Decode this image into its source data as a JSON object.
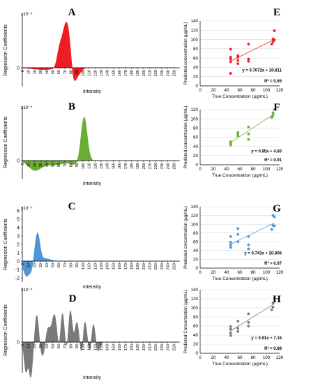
{
  "colors": {
    "A": "#ee1c24",
    "B": "#6aad35",
    "C": "#4f95d6",
    "D": "#7a7a7a",
    "axis": "#000000",
    "grid": "#d9d9d9",
    "text": "#000000"
  },
  "chart_data": [
    {
      "panel": "A",
      "type": "area",
      "ylabel": "Regression Coefficients",
      "xlabel": "Intensity",
      "scale_label": "x10⁻⁴",
      "yticks": [
        0
      ],
      "xticks": [
        0,
        10,
        20,
        30,
        40,
        50,
        60,
        70,
        80,
        90,
        100,
        110,
        120,
        130,
        140,
        150,
        160,
        170,
        180,
        190,
        200,
        210,
        220,
        230,
        240,
        250
      ],
      "peaks": [
        {
          "center": 73,
          "width": 7,
          "amp": 6.0
        },
        {
          "center": 61,
          "width": 4,
          "amp": 1.6
        },
        {
          "center": 84,
          "width": 4,
          "amp": -2.6
        },
        {
          "center": 92,
          "width": 5,
          "amp": -0.9
        },
        {
          "center": 35,
          "width": 18,
          "amp": -0.25
        }
      ]
    },
    {
      "panel": "B",
      "type": "area",
      "ylabel": "Regression Coefficients",
      "xlabel": "Intensity",
      "scale_label": "x10⁻⁴",
      "yticks": [
        0
      ],
      "xticks": [
        0,
        10,
        20,
        30,
        40,
        50,
        60,
        70,
        80,
        90,
        100,
        110,
        120,
        130,
        140,
        150,
        160,
        170,
        180,
        190,
        200,
        210,
        220,
        230,
        240,
        250
      ],
      "peaks": [
        {
          "center": 102,
          "width": 5,
          "amp": 5.7
        },
        {
          "center": 20,
          "width": 10,
          "amp": -1.1
        },
        {
          "center": 50,
          "width": 20,
          "amp": -0.6
        },
        {
          "center": 86,
          "width": 6,
          "amp": -0.4
        }
      ]
    },
    {
      "panel": "C",
      "type": "area",
      "ylabel": "Regression Coefficients",
      "xlabel": "Intensity",
      "scale_label": "x10⁻⁴",
      "yticks": [
        -2,
        -1,
        0,
        1,
        2,
        3,
        4,
        5,
        6
      ],
      "xticks": [
        0,
        10,
        20,
        30,
        40,
        50,
        60,
        70,
        80,
        90,
        100,
        110,
        120,
        130,
        140,
        150,
        160,
        170,
        180,
        190,
        200,
        210,
        220,
        230,
        240,
        250
      ],
      "peaks": [
        {
          "center": 25,
          "width": 4,
          "amp": 3.3
        },
        {
          "center": 7,
          "width": 5,
          "amp": -1.8
        },
        {
          "center": 15,
          "width": 3,
          "amp": -0.8
        },
        {
          "center": 38,
          "width": 8,
          "amp": 0.3
        }
      ]
    },
    {
      "panel": "D",
      "type": "area",
      "ylabel": "Regression Coefficients",
      "xlabel": "Intensity",
      "scale_label": "x10⁻⁴",
      "yticks": [
        0
      ],
      "xticks": [
        0,
        10,
        20,
        30,
        40,
        50,
        60,
        70,
        80,
        90,
        100,
        110,
        120,
        130,
        140,
        150,
        160,
        170,
        180,
        190,
        200,
        210,
        220,
        230,
        240,
        250
      ],
      "peaks": [
        {
          "center": 6,
          "width": 3,
          "amp": -3.8
        },
        {
          "center": 14,
          "width": 3,
          "amp": -4.5
        },
        {
          "center": 24,
          "width": 3,
          "amp": 3.6
        },
        {
          "center": 34,
          "width": 4,
          "amp": -2.0
        },
        {
          "center": 42,
          "width": 4,
          "amp": 2.0
        },
        {
          "center": 53,
          "width": 4,
          "amp": 3.6
        },
        {
          "center": 61,
          "width": 3,
          "amp": -1.5
        },
        {
          "center": 66,
          "width": 3,
          "amp": 4.1
        },
        {
          "center": 74,
          "width": 3,
          "amp": -1.3
        },
        {
          "center": 79,
          "width": 3,
          "amp": 4.4
        },
        {
          "center": 90,
          "width": 3,
          "amp": 2.6
        },
        {
          "center": 98,
          "width": 2.5,
          "amp": -1.8
        },
        {
          "center": 103,
          "width": 3,
          "amp": 2.8
        },
        {
          "center": 112,
          "width": 2.5,
          "amp": -1.5
        },
        {
          "center": 117,
          "width": 3,
          "amp": 2.5
        },
        {
          "center": 125,
          "width": 3,
          "amp": -1.2
        }
      ]
    },
    {
      "panel": "E",
      "type": "scatter",
      "xlabel": "True Concentration (µg/mL)",
      "ylabel": "Predicted concentration (µg/mL)",
      "xlim": [
        0,
        120
      ],
      "ylim": [
        0,
        140
      ],
      "xticks": [
        0,
        20,
        40,
        60,
        80,
        100,
        120
      ],
      "yticks": [
        0,
        20,
        40,
        60,
        80,
        100,
        120,
        140
      ],
      "equation": "y = 0.7072x + 20.811",
      "r2": "R² = 0.65",
      "trend": {
        "slope": 0.7072,
        "intercept": 20.811,
        "x_range": [
          46,
          112
        ]
      },
      "x": [
        46,
        46,
        46,
        46,
        46,
        57,
        57,
        57,
        57,
        73,
        73,
        73,
        108,
        110,
        110,
        112,
        112
      ],
      "y": [
        27,
        52,
        58,
        62,
        79,
        48,
        55,
        62,
        65,
        53,
        58,
        90,
        90,
        95,
        101,
        99,
        119
      ]
    },
    {
      "panel": "F",
      "type": "scatter",
      "xlabel": "True Concentration (µg/mL)",
      "ylabel": "Predicted concentration (µg/mL)",
      "xlim": [
        0,
        120
      ],
      "ylim": [
        0,
        120
      ],
      "xticks": [
        0,
        20,
        40,
        60,
        80,
        100,
        120
      ],
      "yticks": [
        0,
        20,
        40,
        60,
        80,
        100,
        120
      ],
      "equation": "y = 0.95x + 4.60",
      "r2": "R² = 0.91",
      "trend": {
        "slope": 0.95,
        "intercept": 4.6,
        "x_range": [
          46,
          112
        ]
      },
      "x": [
        46,
        46,
        46,
        57,
        57,
        57,
        73,
        73,
        73,
        108,
        110,
        110,
        112
      ],
      "y": [
        43,
        46,
        50,
        63,
        68,
        70,
        55,
        67,
        82,
        103,
        107,
        113,
        120
      ]
    },
    {
      "panel": "G",
      "type": "scatter",
      "xlabel": "True Concentration (µg/mL)",
      "ylabel": "Predicted concentration (µg/mL)",
      "xlim": [
        0,
        120
      ],
      "ylim": [
        0,
        140
      ],
      "xticks": [
        0,
        20,
        40,
        60,
        80,
        100,
        120
      ],
      "yticks": [
        0,
        20,
        40,
        60,
        80,
        100,
        120,
        140
      ],
      "equation": "y = 0.743x + 20.006",
      "r2": "R² = 0.67",
      "trend": {
        "slope": 0.743,
        "intercept": 20.006,
        "x_range": [
          46,
          112
        ]
      },
      "x": [
        46,
        46,
        46,
        46,
        57,
        57,
        57,
        73,
        73,
        73,
        108,
        110,
        110,
        112,
        112
      ],
      "y": [
        47,
        53,
        59,
        72,
        60,
        77,
        90,
        44,
        53,
        72,
        88,
        97,
        120,
        96,
        117
      ]
    },
    {
      "panel": "H",
      "type": "scatter",
      "xlabel": "True Concentration (µg/mL)",
      "ylabel": "Predicted Concentration (µg/mL)",
      "xlim": [
        0,
        120
      ],
      "ylim": [
        0,
        140
      ],
      "xticks": [
        0,
        20,
        40,
        60,
        80,
        100,
        120
      ],
      "yticks": [
        0,
        20,
        40,
        60,
        80,
        100,
        120,
        140
      ],
      "equation": "y = 0.91x + 7.34",
      "r2": "R² = 0.89",
      "trend": {
        "slope": 0.91,
        "intercept": 7.34,
        "x_range": [
          46,
          112
        ]
      },
      "x": [
        46,
        46,
        46,
        46,
        57,
        57,
        57,
        73,
        73,
        73,
        108,
        110,
        110,
        112
      ],
      "y": [
        39,
        45,
        53,
        59,
        48,
        55,
        71,
        60,
        68,
        87,
        96,
        102,
        111,
        121
      ]
    }
  ]
}
